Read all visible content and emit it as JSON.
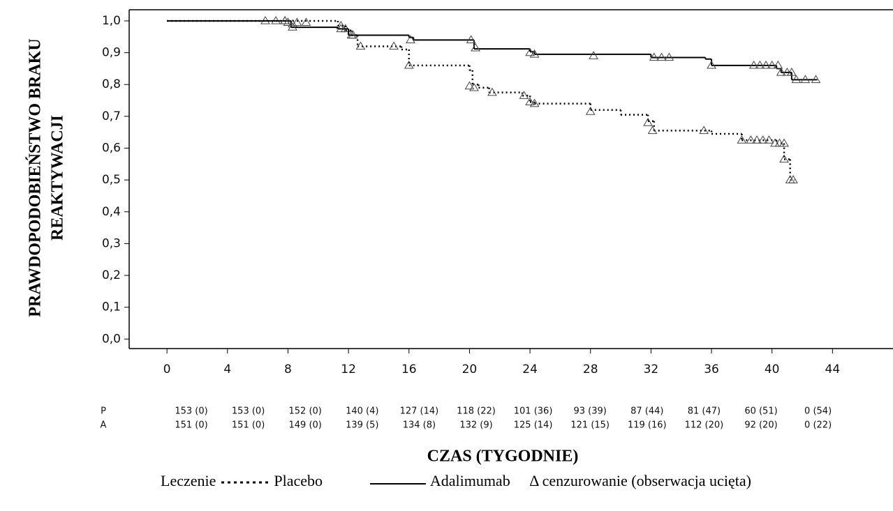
{
  "chart_data": {
    "type": "step",
    "y_label": [
      "PRAWDOPODOBIEŃSTWO BRAKU",
      "REAKTYWACJI"
    ],
    "x_label": "CZAS (TYGODNIE)",
    "legend_title": "Leczenie",
    "censor_label": "Δ cenzurowanie (obserwacja ucięta)",
    "xlim": [
      -2.5,
      48
    ],
    "ylim": [
      -0.03,
      1.035
    ],
    "xticks": [
      0,
      4,
      8,
      12,
      16,
      20,
      24,
      28,
      32,
      36,
      40,
      44
    ],
    "yticks": [
      {
        "value": 0,
        "label": "0,0"
      },
      {
        "value": 0.1,
        "label": "0,1"
      },
      {
        "value": 0.2,
        "label": "0,2"
      },
      {
        "value": 0.3,
        "label": "0,3"
      },
      {
        "value": 0.4,
        "label": "0,4"
      },
      {
        "value": 0.5,
        "label": "0,5"
      },
      {
        "value": 0.6,
        "label": "0,6"
      },
      {
        "value": 0.7,
        "label": "0,7"
      },
      {
        "value": 0.8,
        "label": "0,8"
      },
      {
        "value": 0.9,
        "label": "0,9"
      },
      {
        "value": 1.0,
        "label": "1,0"
      }
    ],
    "series": [
      {
        "name": "Placebo",
        "color": "#000000",
        "dash": "2 4",
        "x": [
          0,
          11.3,
          11.8,
          12.2,
          12.6,
          15.5,
          16.0,
          20.0,
          20.2,
          20.6,
          21.3,
          23.5,
          24.0,
          24.3,
          28.0,
          30.0,
          31.8,
          32.2,
          36.0,
          38.0,
          40.3,
          40.8,
          41.2,
          41.5
        ],
        "values": [
          1.0,
          0.985,
          0.97,
          0.955,
          0.92,
          0.91,
          0.86,
          0.845,
          0.8,
          0.79,
          0.775,
          0.765,
          0.745,
          0.74,
          0.72,
          0.705,
          0.685,
          0.655,
          0.645,
          0.625,
          0.615,
          0.565,
          0.5,
          0.5
        ],
        "censored": {
          "x": [
            6.5,
            7.2,
            7.8,
            8.3,
            8.6,
            9.2,
            11.5,
            11.8,
            12.3,
            12.8,
            15.0,
            16.0,
            20.0,
            20.3,
            21.5,
            23.6,
            24.0,
            24.3,
            28.0,
            31.8,
            32.1,
            35.5,
            38.0,
            38.6,
            39.0,
            39.4,
            39.8,
            40.2,
            40.5,
            40.8,
            40.8,
            41.2,
            41.4
          ],
          "values": [
            1.0,
            1.0,
            1.0,
            0.99,
            0.995,
            0.995,
            0.985,
            0.975,
            0.955,
            0.92,
            0.92,
            0.86,
            0.795,
            0.79,
            0.775,
            0.765,
            0.745,
            0.74,
            0.715,
            0.68,
            0.655,
            0.655,
            0.625,
            0.625,
            0.625,
            0.625,
            0.625,
            0.615,
            0.615,
            0.615,
            0.565,
            0.5,
            0.5
          ]
        }
      },
      {
        "name": "Adalimumab",
        "color": "#000000",
        "dash": "none",
        "x": [
          0,
          8.2,
          11.3,
          12.0,
          16.0,
          16.3,
          20.3,
          24.0,
          24.3,
          32.0,
          35.6,
          36.0,
          40.3,
          40.6,
          41.3,
          43.0
        ],
        "values": [
          1.0,
          0.98,
          0.975,
          0.955,
          0.948,
          0.94,
          0.912,
          0.903,
          0.895,
          0.885,
          0.88,
          0.86,
          0.85,
          0.838,
          0.815,
          0.815
        ],
        "censored": {
          "x": [
            7.8,
            8.0,
            8.3,
            11.5,
            12.2,
            16.1,
            20.1,
            20.4,
            24.0,
            24.3,
            28.2,
            32.2,
            32.7,
            33.2,
            36.0,
            38.8,
            39.2,
            39.6,
            40.0,
            40.4,
            40.6,
            41.0,
            41.3,
            41.6,
            42.2,
            42.9
          ],
          "values": [
            1.0,
            0.995,
            0.98,
            0.975,
            0.955,
            0.94,
            0.94,
            0.915,
            0.9,
            0.895,
            0.89,
            0.885,
            0.885,
            0.885,
            0.86,
            0.86,
            0.86,
            0.86,
            0.86,
            0.86,
            0.838,
            0.838,
            0.838,
            0.815,
            0.815,
            0.815
          ]
        }
      }
    ],
    "risk_table": [
      {
        "label": "P",
        "values": [
          "153 (0)",
          "153 (0)",
          "152 (0)",
          "140 (4)",
          "127 (14)",
          "118 (22)",
          "101 (36)",
          "93 (39)",
          "87 (44)",
          "81 (47)",
          "60 (51)",
          "0 (54)"
        ]
      },
      {
        "label": "A",
        "values": [
          "151 (0)",
          "151 (0)",
          "149 (0)",
          "139 (5)",
          "134 (8)",
          "132 (9)",
          "125 (14)",
          "121 (15)",
          "119 (16)",
          "112 (20)",
          "92 (20)",
          "0 (22)"
        ]
      }
    ]
  }
}
